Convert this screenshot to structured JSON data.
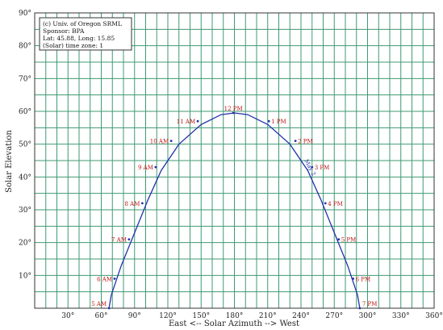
{
  "chart_data": {
    "type": "line",
    "xlabel": "East <-- Solar Azimuth --> West",
    "ylabel": "Solar Elevation",
    "xlim": [
      0,
      360
    ],
    "ylim": [
      0,
      90
    ],
    "x_ticks": [
      30,
      60,
      90,
      120,
      150,
      180,
      210,
      240,
      270,
      300,
      330,
      360
    ],
    "y_ticks": [
      10,
      20,
      30,
      40,
      50,
      60,
      70,
      80,
      90
    ],
    "x_tick_labels": [
      "30°",
      "60°",
      "90°",
      "120°",
      "150°",
      "180°",
      "210°",
      "240°",
      "270°",
      "300°",
      "330°",
      "360°"
    ],
    "y_tick_labels": [
      "10°",
      "20°",
      "30°",
      "40°",
      "50°",
      "60°",
      "70°",
      "80°",
      "90°"
    ],
    "grid": true,
    "info_box": [
      "(c) Univ. of Oregon SRML",
      "Sponsor: BPA",
      "Lat: 45.88, Long: 15.85",
      "(Solar) time zone: 1"
    ],
    "series": [
      {
        "name": "May 2",
        "x": [
          67,
          69,
          78,
          90,
          102,
          114,
          130,
          150,
          168,
          180,
          192,
          210,
          230,
          246,
          258,
          270,
          282,
          291,
          293
        ],
        "y": [
          0,
          4,
          13,
          23,
          33,
          42,
          50,
          56,
          59,
          59.5,
          59,
          56,
          50,
          42,
          33,
          23,
          13,
          4,
          0
        ]
      }
    ],
    "hour_points": [
      {
        "label": "5 AM",
        "az": 67,
        "el": 0
      },
      {
        "label": "6 AM",
        "az": 72,
        "el": 9
      },
      {
        "label": "7 AM",
        "az": 85,
        "el": 21
      },
      {
        "label": "8 AM",
        "az": 97,
        "el": 32
      },
      {
        "label": "9 AM",
        "az": 109,
        "el": 43
      },
      {
        "label": "10 AM",
        "az": 123,
        "el": 51
      },
      {
        "label": "11 AM",
        "az": 147,
        "el": 57
      },
      {
        "label": "12 PM",
        "az": 179,
        "el": 59.5
      },
      {
        "label": "1 PM",
        "az": 211,
        "el": 57
      },
      {
        "label": "2 PM",
        "az": 235,
        "el": 51
      },
      {
        "label": "3 PM",
        "az": 250,
        "el": 43
      },
      {
        "label": "4 PM",
        "az": 262,
        "el": 32
      },
      {
        "label": "5 PM",
        "az": 274,
        "el": 21
      },
      {
        "label": "6 PM",
        "az": 287,
        "el": 9
      },
      {
        "label": "7 PM",
        "az": 293,
        "el": 0
      }
    ]
  }
}
